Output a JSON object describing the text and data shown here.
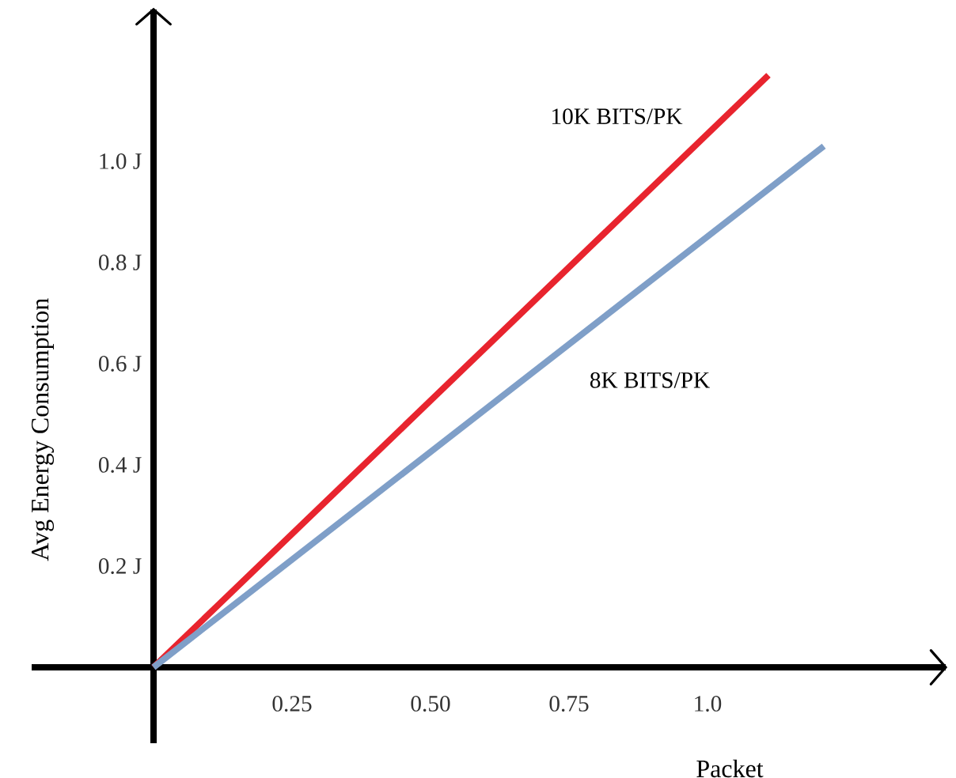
{
  "chart_data": {
    "type": "line",
    "xlabel": "Packet",
    "ylabel": "Avg Energy Consumption",
    "xlim": [
      -0.22,
      1.43
    ],
    "ylim": [
      -0.15,
      1.3
    ],
    "xticks": [
      0.25,
      {
        "value": 0.5,
        "label": "0.50"
      },
      0.75,
      {
        "value": 1,
        "label": "1.0"
      }
    ],
    "yticks": [
      {
        "value": 0.2,
        "label": "0.2 J"
      },
      {
        "value": 0.4,
        "label": "0.4 J"
      },
      {
        "value": 0.6,
        "label": "0.6 J"
      },
      {
        "value": 0.8,
        "label": "0.8 J"
      },
      {
        "value": 1,
        "label": "1.0 J"
      }
    ],
    "series": [
      {
        "name": "10K BITS/PK",
        "color": "#e8242e",
        "x": [
          0,
          1.11
        ],
        "values": [
          0,
          1.17
        ]
      },
      {
        "name": "8K BITS/PK",
        "color": "#7f9fc8",
        "x": [
          0,
          1.21
        ],
        "values": [
          0,
          1.03
        ]
      }
    ]
  }
}
